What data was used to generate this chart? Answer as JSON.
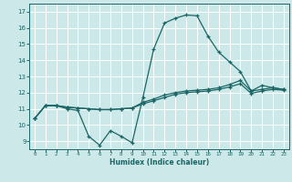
{
  "title": "",
  "xlabel": "Humidex (Indice chaleur)",
  "bg_color": "#cde8e8",
  "grid_color": "#ffffff",
  "line_color": "#1a6666",
  "xlim": [
    -0.5,
    23.5
  ],
  "ylim": [
    8.5,
    17.5
  ],
  "xticks": [
    0,
    1,
    2,
    3,
    4,
    5,
    6,
    7,
    8,
    9,
    10,
    11,
    12,
    13,
    14,
    15,
    16,
    17,
    18,
    19,
    20,
    21,
    22,
    23
  ],
  "yticks": [
    9,
    10,
    11,
    12,
    13,
    14,
    15,
    16,
    17
  ],
  "line1_x": [
    0,
    1,
    2,
    3,
    4,
    5,
    6,
    7,
    8,
    9,
    10,
    11,
    12,
    13,
    14,
    15,
    16,
    17,
    18,
    19,
    20,
    21,
    22,
    23
  ],
  "line1_y": [
    10.4,
    11.2,
    11.2,
    11.0,
    10.9,
    9.3,
    8.75,
    9.65,
    9.3,
    8.9,
    11.7,
    14.7,
    16.3,
    16.6,
    16.8,
    16.75,
    15.5,
    14.5,
    13.9,
    13.3,
    12.1,
    12.45,
    12.3,
    12.2
  ],
  "line2_x": [
    0,
    1,
    2,
    3,
    4,
    5,
    6,
    7,
    8,
    9,
    10,
    11,
    12,
    13,
    14,
    15,
    16,
    17,
    18,
    19,
    20,
    21,
    22,
    23
  ],
  "line2_y": [
    10.4,
    11.2,
    11.2,
    11.1,
    11.05,
    11.0,
    10.95,
    10.95,
    11.0,
    11.05,
    11.4,
    11.6,
    11.85,
    12.0,
    12.1,
    12.15,
    12.2,
    12.3,
    12.5,
    12.75,
    12.1,
    12.2,
    12.3,
    12.2
  ],
  "line3_x": [
    0,
    1,
    2,
    3,
    4,
    5,
    6,
    7,
    8,
    9,
    10,
    11,
    12,
    13,
    14,
    15,
    16,
    17,
    18,
    19,
    20,
    21,
    22,
    23
  ],
  "line3_y": [
    10.4,
    11.2,
    11.2,
    11.1,
    11.05,
    11.0,
    10.95,
    10.95,
    11.0,
    11.05,
    11.3,
    11.5,
    11.7,
    11.9,
    12.0,
    12.05,
    12.1,
    12.2,
    12.35,
    12.55,
    11.95,
    12.1,
    12.2,
    12.15
  ]
}
